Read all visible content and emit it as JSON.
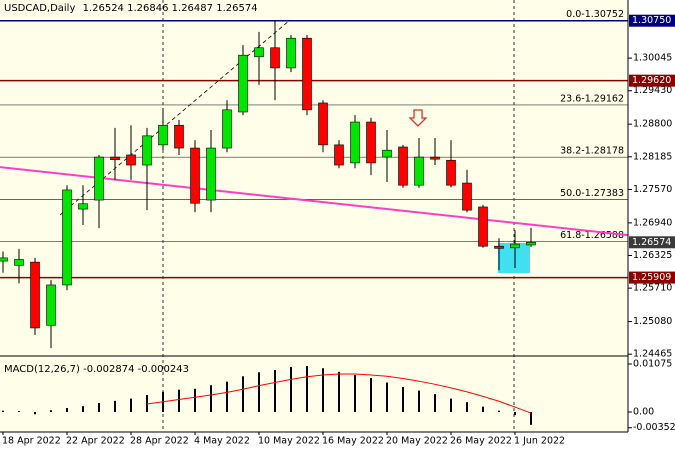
{
  "chart_data": [
    {
      "type": "candlestick",
      "title": "USDCAD,Daily",
      "categories": [
        "18 Apr 2022",
        null,
        null,
        null,
        "22 Apr 2022",
        null,
        null,
        null,
        "28 Apr 2022",
        null,
        null,
        null,
        "4 May 2022",
        null,
        null,
        null,
        "10 May 2022",
        null,
        null,
        null,
        "16 May 2022",
        null,
        null,
        null,
        "20 May 2022",
        null,
        null,
        null,
        "26 May 2022",
        null,
        null,
        null,
        "1 Jun 2022",
        null
      ],
      "open": [
        1.2622,
        1.2614,
        1.262,
        1.2501,
        1.2577,
        1.272,
        1.2737,
        1.2818,
        1.2822,
        1.2803,
        1.2841,
        1.2878,
        1.2835,
        1.2737,
        1.2835,
        1.2903,
        1.3007,
        1.3024,
        1.2986,
        1.3042,
        1.292,
        1.2841,
        1.2807,
        1.2884,
        1.2818,
        1.2837,
        1.2765,
        1.2818,
        1.2812,
        1.2769,
        1.2724,
        1.265,
        1.2647,
        1.26524
      ],
      "high": [
        1.264,
        1.2645,
        1.2628,
        1.2586,
        1.2765,
        1.2765,
        1.2822,
        1.2873,
        1.2878,
        1.2873,
        1.291,
        1.2888,
        1.285,
        1.2869,
        1.2925,
        1.3029,
        1.3054,
        1.3076,
        1.3048,
        1.3048,
        1.2925,
        1.285,
        1.2897,
        1.2892,
        1.2869,
        1.2841,
        1.2854,
        1.2854,
        1.285,
        1.2794,
        1.2728,
        1.2665,
        1.268,
        1.26846
      ],
      "low": [
        1.26,
        1.258,
        1.2483,
        1.2458,
        1.2567,
        1.269,
        1.2684,
        1.2775,
        1.2775,
        1.2718,
        1.2831,
        1.2822,
        1.2714,
        1.2714,
        1.2827,
        1.2897,
        1.2954,
        1.2925,
        1.2978,
        1.2897,
        1.2827,
        1.2797,
        1.2797,
        1.2784,
        1.2771,
        1.276,
        1.276,
        1.2803,
        1.2761,
        1.2714,
        1.2647,
        1.2605,
        1.2609,
        1.26487
      ],
      "close": [
        1.2628,
        1.2625,
        1.2496,
        1.2577,
        1.2756,
        1.273,
        1.2818,
        1.2813,
        1.2803,
        1.2858,
        1.2878,
        1.2835,
        1.2731,
        1.2835,
        1.2907,
        1.301,
        1.3024,
        1.2986,
        1.3042,
        1.2907,
        1.2841,
        1.2803,
        1.2884,
        1.2807,
        1.2831,
        1.2765,
        1.2818,
        1.2814,
        1.2765,
        1.2718,
        1.265,
        1.2646,
        1.2654,
        1.26574
      ],
      "up_color": "#00e600",
      "down_color": "#ff0000",
      "ylim": [
        1.2445,
        1.3114
      ],
      "yticks": [
        1.30045,
        {
          "value": 1.2943,
          "label": "1.29430"
        },
        {
          "value": 1.288,
          "label": "1.28800"
        },
        1.28185,
        {
          "value": 1.2757,
          "label": "1.27570"
        },
        {
          "value": 1.2694,
          "label": "1.26940"
        },
        1.26325,
        {
          "value": 1.2571,
          "label": "1.25710"
        },
        {
          "value": 1.2508,
          "label": "1.25080"
        },
        1.24465
      ],
      "levels": [
        {
          "value": 1.3075,
          "label": "1.30750",
          "color": "#000080"
        },
        {
          "value": 1.2962,
          "label": "1.29620",
          "color": "#8b0000"
        },
        {
          "value": 1.25909,
          "label": "1.25909",
          "color": "#8b0000"
        }
      ],
      "fibonacci": [
        {
          "value": 1.30752,
          "label": "0.0-1.30752"
        },
        {
          "value": 1.29162,
          "label": "23.6-1.29162"
        },
        {
          "value": 1.28178,
          "label": "38.2-1.28178"
        },
        {
          "value": 1.27383,
          "label": "50.0-1.27383"
        },
        {
          "value": 1.26588,
          "label": "61.8-1.26588"
        }
      ],
      "trendline": {
        "start": 1.2799,
        "end": 1.2671,
        "color": "#ff3cc8"
      }
    },
    {
      "type": "macd",
      "title": "MACD(12,26,7)",
      "histogram": {
        "color": "#000000",
        "values": [
          0.0003,
          0.0002,
          -0.0005,
          0.0004,
          0.0009,
          0.0013,
          0.002,
          0.0025,
          0.003,
          0.0038,
          0.0045,
          0.005,
          0.0052,
          0.006,
          0.0068,
          0.008,
          0.0089,
          0.0094,
          0.0101,
          0.0103,
          0.0098,
          0.009,
          0.0083,
          0.0076,
          0.0066,
          0.0056,
          0.0048,
          0.004,
          0.003,
          0.0022,
          0.0012,
          0.0003,
          -0.0007,
          -0.002874
        ]
      },
      "signal": {
        "color": "#ff0000",
        "values": [
          null,
          null,
          null,
          null,
          null,
          null,
          null,
          null,
          null,
          0.0018,
          0.0023,
          0.0028,
          0.0033,
          0.0038,
          0.0044,
          0.0051,
          0.0059,
          0.0066,
          0.0073,
          0.0079,
          0.0083,
          0.0085,
          0.0085,
          0.0083,
          0.008,
          0.0075,
          0.0069,
          0.0062,
          0.0054,
          0.0045,
          0.0035,
          0.0024,
          0.0011,
          -0.000243
        ]
      },
      "ylim": [
        -0.00448,
        0.01232
      ],
      "yticks": [
        0.01075,
        {
          "value": 0,
          "label": "0.00"
        },
        -0.003523
      ]
    }
  ]
}
